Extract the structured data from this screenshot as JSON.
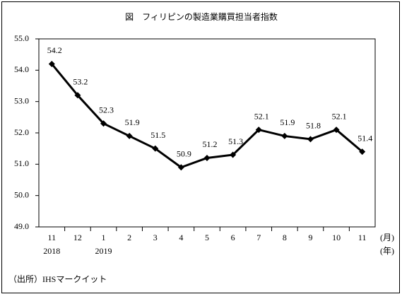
{
  "chart_data": {
    "type": "line",
    "title": "図　フィリピンの製造業購買担当者指数",
    "categories": [
      "11",
      "12",
      "1",
      "2",
      "3",
      "4",
      "5",
      "6",
      "7",
      "8",
      "9",
      "10",
      "11"
    ],
    "years": [
      "2018",
      null,
      "2019",
      null,
      null,
      null,
      null,
      null,
      null,
      null,
      null,
      null,
      null
    ],
    "x_unit": "(月)",
    "year_unit": "(年)",
    "series": [
      {
        "name": null,
        "color": "#000000",
        "values": [
          54.2,
          53.2,
          52.3,
          51.9,
          51.5,
          50.9,
          51.2,
          51.3,
          52.1,
          51.9,
          51.8,
          52.1,
          51.4
        ]
      }
    ],
    "ylim": [
      49,
      55
    ],
    "yticks": [
      {
        "value": 49,
        "label": "49.0"
      },
      {
        "value": 50,
        "label": "50.0"
      },
      {
        "value": 51,
        "label": "51.0"
      },
      {
        "value": 52,
        "label": "52.0"
      },
      {
        "value": 53,
        "label": "53.0"
      },
      {
        "value": 54,
        "label": "54.0"
      },
      {
        "value": 55,
        "label": "55.0"
      }
    ],
    "grid": false,
    "source": "（出所）IHSマークイット"
  }
}
